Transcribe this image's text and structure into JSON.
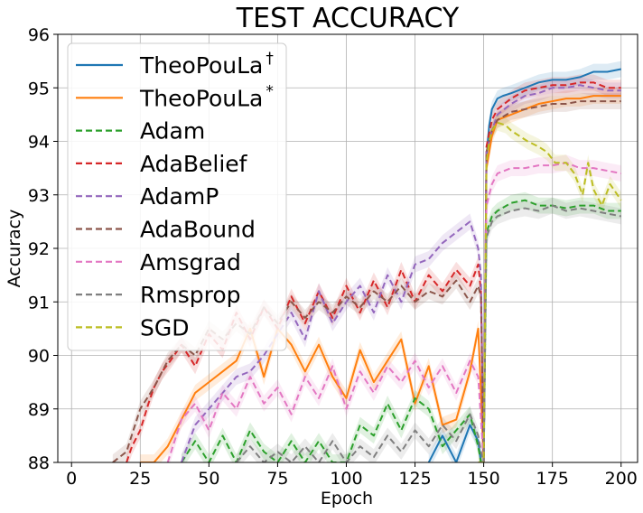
{
  "chart_data": {
    "type": "line",
    "title": "TEST ACCURACY",
    "xlabel": "Epoch",
    "ylabel": "Accuracy",
    "xlim": [
      -5,
      206
    ],
    "ylim": [
      88,
      96
    ],
    "xticks": [
      0,
      25,
      50,
      75,
      100,
      125,
      150,
      175,
      200
    ],
    "yticks": [
      88,
      89,
      90,
      91,
      92,
      93,
      94,
      95,
      96
    ],
    "grid": true,
    "legend_position": "top-left",
    "series": [
      {
        "name": "TheoPouLa",
        "sup": "†",
        "color": "#1f77b4",
        "dash": "solid",
        "x": [
          130,
          135,
          140,
          145,
          148,
          149,
          150,
          151,
          152,
          153,
          155,
          157,
          160,
          165,
          170,
          175,
          180,
          185,
          190,
          195,
          200
        ],
        "y": [
          88.0,
          88.5,
          88.0,
          88.7,
          88.4,
          88.0,
          88.0,
          93.7,
          94.3,
          94.6,
          94.8,
          94.85,
          94.9,
          95.0,
          95.1,
          95.15,
          95.15,
          95.2,
          95.3,
          95.3,
          95.35
        ]
      },
      {
        "name": "TheoPouLa",
        "sup": "*",
        "color": "#ff7f0e",
        "dash": "solid",
        "x": [
          25,
          30,
          35,
          40,
          45,
          50,
          55,
          60,
          65,
          70,
          75,
          80,
          85,
          90,
          95,
          100,
          105,
          110,
          115,
          120,
          125,
          130,
          135,
          140,
          145,
          148,
          149,
          150,
          151,
          153,
          155,
          160,
          165,
          170,
          175,
          180,
          185,
          190,
          195,
          200
        ],
        "y": [
          88.0,
          88.0,
          88.3,
          88.8,
          89.3,
          89.5,
          89.7,
          89.9,
          90.5,
          89.6,
          90.5,
          90.2,
          89.7,
          90.2,
          89.6,
          89.2,
          90.1,
          89.5,
          89.9,
          90.3,
          89.1,
          89.8,
          88.7,
          88.8,
          89.7,
          90.5,
          89.3,
          88.0,
          93.5,
          94.1,
          94.4,
          94.5,
          94.6,
          94.7,
          94.75,
          94.8,
          94.8,
          94.85,
          94.85,
          94.85
        ]
      },
      {
        "name": "Adam",
        "color": "#2ca02c",
        "dash": "dashed",
        "x": [
          40,
          45,
          50,
          55,
          60,
          65,
          70,
          75,
          80,
          85,
          90,
          95,
          100,
          105,
          110,
          115,
          120,
          125,
          130,
          135,
          140,
          145,
          148,
          149,
          150,
          151,
          153,
          155,
          160,
          165,
          170,
          175,
          180,
          185,
          190,
          195,
          200
        ],
        "y": [
          88.0,
          88.4,
          88.0,
          88.5,
          88.0,
          88.6,
          88.2,
          88.0,
          88.4,
          88.0,
          88.4,
          88.0,
          88.0,
          88.7,
          88.5,
          89.1,
          88.6,
          89.2,
          89.0,
          88.3,
          88.6,
          88.9,
          88.3,
          88.0,
          88.0,
          92.3,
          92.6,
          92.7,
          92.85,
          92.9,
          92.8,
          92.8,
          92.75,
          92.8,
          92.8,
          92.7,
          92.7
        ]
      },
      {
        "name": "AdaBelief",
        "color": "#d62728",
        "dash": "dashed",
        "x": [
          20,
          22,
          25,
          28,
          30,
          33,
          36,
          40,
          45,
          50,
          55,
          60,
          65,
          70,
          75,
          80,
          85,
          90,
          95,
          100,
          105,
          110,
          115,
          120,
          125,
          130,
          135,
          140,
          145,
          148,
          149,
          150,
          151,
          153,
          155,
          160,
          165,
          170,
          175,
          180,
          185,
          190,
          195,
          200
        ],
        "y": [
          88.0,
          88.3,
          88.6,
          89.1,
          89.4,
          89.7,
          89.9,
          90.2,
          89.8,
          90.4,
          90.1,
          90.8,
          90.3,
          90.9,
          90.5,
          91.1,
          90.6,
          91.2,
          90.7,
          91.3,
          90.8,
          91.4,
          90.9,
          91.6,
          91.0,
          91.5,
          91.2,
          91.6,
          91.3,
          91.7,
          91.2,
          88.0,
          93.9,
          94.4,
          94.6,
          94.8,
          94.95,
          95.0,
          95.05,
          95.05,
          95.1,
          95.1,
          95.0,
          95.0
        ]
      },
      {
        "name": "AdamP",
        "color": "#9467bd",
        "dash": "dashed",
        "x": [
          40,
          45,
          50,
          55,
          60,
          65,
          70,
          75,
          80,
          85,
          90,
          95,
          100,
          105,
          110,
          115,
          120,
          125,
          130,
          135,
          140,
          145,
          148,
          149,
          150,
          151,
          153,
          155,
          160,
          165,
          170,
          175,
          180,
          185,
          190,
          195,
          200
        ],
        "y": [
          88.0,
          88.7,
          89.0,
          89.3,
          89.6,
          89.7,
          90.0,
          90.4,
          90.8,
          90.3,
          91.2,
          90.6,
          91.0,
          91.3,
          90.8,
          91.5,
          91.0,
          91.7,
          91.8,
          92.1,
          92.3,
          92.5,
          92.0,
          91.5,
          88.0,
          93.8,
          94.2,
          94.5,
          94.7,
          94.85,
          94.9,
          95.0,
          95.0,
          95.05,
          95.0,
          94.95,
          94.95
        ]
      },
      {
        "name": "AdaBound",
        "color": "#8c564b",
        "dash": "dashed",
        "x": [
          15,
          20,
          25,
          30,
          35,
          40,
          45,
          50,
          55,
          60,
          65,
          70,
          75,
          80,
          85,
          90,
          95,
          100,
          105,
          110,
          115,
          120,
          125,
          130,
          135,
          140,
          145,
          148,
          149,
          150,
          151,
          153,
          155,
          160,
          165,
          170,
          175,
          180,
          185,
          190,
          195,
          200
        ],
        "y": [
          88.0,
          88.2,
          89.0,
          89.4,
          89.9,
          90.2,
          90.0,
          90.5,
          90.3,
          90.6,
          90.4,
          90.9,
          90.6,
          91.0,
          90.7,
          91.0,
          90.8,
          91.1,
          90.9,
          91.2,
          91.0,
          91.3,
          91.0,
          91.2,
          91.1,
          91.4,
          91.0,
          91.3,
          91.1,
          88.0,
          93.8,
          94.2,
          94.4,
          94.55,
          94.6,
          94.65,
          94.7,
          94.7,
          94.75,
          94.75,
          94.75,
          94.75
        ]
      },
      {
        "name": "Amsgrad",
        "color": "#e377c2",
        "dash": "dashed",
        "x": [
          35,
          40,
          45,
          50,
          55,
          60,
          65,
          70,
          75,
          80,
          85,
          90,
          95,
          100,
          105,
          110,
          115,
          120,
          125,
          130,
          135,
          140,
          145,
          148,
          149,
          150,
          151,
          153,
          155,
          160,
          165,
          170,
          175,
          180,
          185,
          190,
          195,
          200
        ],
        "y": [
          88.0,
          88.8,
          89.1,
          88.6,
          89.3,
          89.0,
          89.6,
          89.1,
          89.4,
          88.9,
          89.6,
          89.2,
          89.8,
          89.0,
          89.7,
          89.3,
          89.8,
          89.5,
          89.9,
          89.4,
          89.8,
          89.3,
          89.9,
          89.6,
          88.8,
          88.0,
          92.8,
          93.2,
          93.4,
          93.5,
          93.5,
          93.55,
          93.55,
          93.6,
          93.5,
          93.5,
          93.45,
          93.4
        ]
      },
      {
        "name": "Rmsprop",
        "color": "#7f7f7f",
        "dash": "dashed",
        "x": [
          60,
          65,
          70,
          75,
          80,
          85,
          90,
          95,
          100,
          105,
          110,
          115,
          120,
          125,
          130,
          135,
          140,
          145,
          148,
          149,
          150,
          151,
          153,
          155,
          160,
          165,
          170,
          175,
          180,
          185,
          190,
          195,
          200
        ],
        "y": [
          88.0,
          88.3,
          88.0,
          88.2,
          88.0,
          88.3,
          88.0,
          88.4,
          88.0,
          88.3,
          88.1,
          88.5,
          88.2,
          88.6,
          88.3,
          88.7,
          88.4,
          88.9,
          88.5,
          88.2,
          88.0,
          92.2,
          92.5,
          92.6,
          92.7,
          92.75,
          92.7,
          92.8,
          92.7,
          92.75,
          92.7,
          92.65,
          92.6
        ]
      },
      {
        "name": "SGD",
        "color": "#bcbd22",
        "dash": "dashed",
        "x": [
          148,
          149,
          150,
          151,
          152,
          153,
          155,
          158,
          160,
          163,
          166,
          170,
          173,
          176,
          180,
          183,
          186,
          188,
          190,
          193,
          196,
          200
        ],
        "y": [
          88.0,
          88.0,
          88.0,
          93.6,
          94.0,
          94.2,
          94.35,
          94.3,
          94.2,
          94.1,
          94.0,
          93.9,
          93.8,
          93.6,
          93.6,
          93.4,
          93.0,
          93.6,
          93.1,
          92.8,
          93.2,
          92.9
        ]
      }
    ]
  }
}
